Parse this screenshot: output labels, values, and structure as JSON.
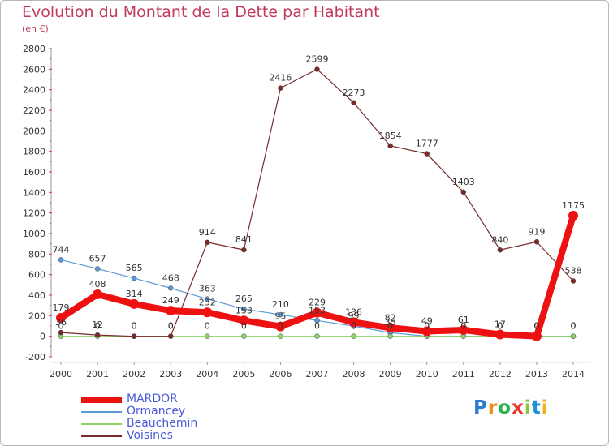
{
  "title": "Evolution du Montant de la Dette par Habitant",
  "subtitle": "(en €)",
  "logo_text": "Proxiti",
  "chart_data": {
    "type": "line",
    "title": "Evolution du Montant de la Dette par Habitant",
    "subtitle": "(en €)",
    "x": [
      2000,
      2001,
      2002,
      2003,
      2004,
      2005,
      2006,
      2007,
      2008,
      2009,
      2010,
      2011,
      2012,
      2013,
      2014
    ],
    "ylim": [
      -200,
      2800
    ],
    "yticks": [
      -200,
      0,
      200,
      400,
      600,
      800,
      1000,
      1200,
      1400,
      1600,
      1800,
      2000,
      2200,
      2400,
      2600,
      2800
    ],
    "grid": false,
    "legend_position": "bottom-left",
    "series": [
      {
        "name": "MARDOR",
        "color": "#ee1111",
        "emphasis": true,
        "values": [
          179,
          408,
          314,
          249,
          232,
          153,
          95,
          229,
          136,
          82,
          49,
          61,
          17,
          0,
          1175
        ],
        "labels": [
          "179",
          "408",
          "314",
          "249",
          "232",
          "153",
          "95",
          "229",
          "136",
          "82",
          "49",
          "61",
          "17",
          "0",
          "1175"
        ]
      },
      {
        "name": "Ormancey",
        "color": "#5b9bd5",
        "values": [
          744,
          657,
          565,
          468,
          363,
          265,
          210,
          153,
          99,
          35,
          0,
          0,
          0,
          0,
          0
        ],
        "labels": [
          "744",
          "657",
          "565",
          "468",
          "363",
          "265",
          "210",
          "153",
          "99",
          "35",
          "0",
          "0",
          "0",
          "0",
          "0"
        ]
      },
      {
        "name": "Beauchemin",
        "color": "#8ed26a",
        "values": [
          0,
          0,
          0,
          0,
          0,
          0,
          0,
          0,
          0,
          0,
          0,
          0,
          0,
          0,
          0
        ],
        "labels": [
          "0",
          "0",
          "0",
          "0",
          "0",
          "0",
          "0",
          "0",
          "0",
          "0",
          "0",
          "0",
          "0",
          "0",
          "0"
        ]
      },
      {
        "name": "Voisines",
        "color": "#7a2a2a",
        "values": [
          36,
          12,
          0,
          0,
          914,
          841,
          2416,
          2599,
          2273,
          1854,
          1777,
          1403,
          840,
          919,
          538
        ],
        "labels": [
          "36",
          "12",
          "0",
          "0",
          "914",
          "841",
          "2416",
          "2599",
          "2273",
          "1854",
          "1777",
          "1403",
          "840",
          "919",
          "538"
        ]
      }
    ]
  }
}
